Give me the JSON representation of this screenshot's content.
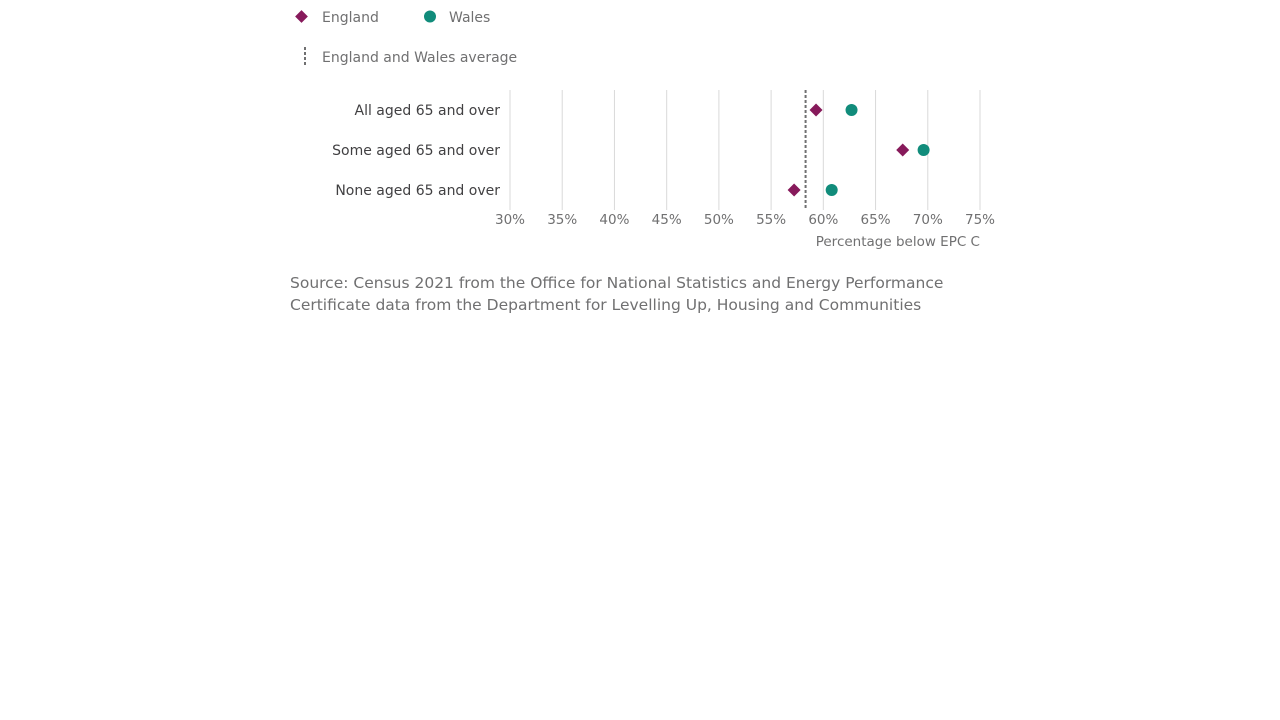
{
  "chart_data": {
    "type": "scatter",
    "categories": [
      "All aged 65 and over",
      "Some aged 65 and over",
      "None aged 65 and over"
    ],
    "series": [
      {
        "name": "England",
        "marker": "diamond",
        "color": "#871A5B",
        "values": [
          59.3,
          67.6,
          57.2
        ]
      },
      {
        "name": "Wales",
        "marker": "circle",
        "color": "#118C7B",
        "values": [
          62.7,
          69.6,
          60.8
        ]
      }
    ],
    "reference_line": {
      "name": "England and Wales average",
      "value": 58.3,
      "color": "#707071",
      "style": "dashed"
    },
    "xlabel": "Percentage below EPC C",
    "xlim": [
      30,
      75
    ],
    "xticks": [
      "30%",
      "35%",
      "40%",
      "45%",
      "50%",
      "55%",
      "60%",
      "65%",
      "70%",
      "75%"
    ],
    "xtick_values": [
      30,
      35,
      40,
      45,
      50,
      55,
      60,
      65,
      70,
      75
    ],
    "grid": true,
    "legend_position": "top-left"
  },
  "source": "Source: Census 2021 from the Office for National Statistics and Energy Performance Certificate data from the Department for Levelling Up, Housing and Communities"
}
